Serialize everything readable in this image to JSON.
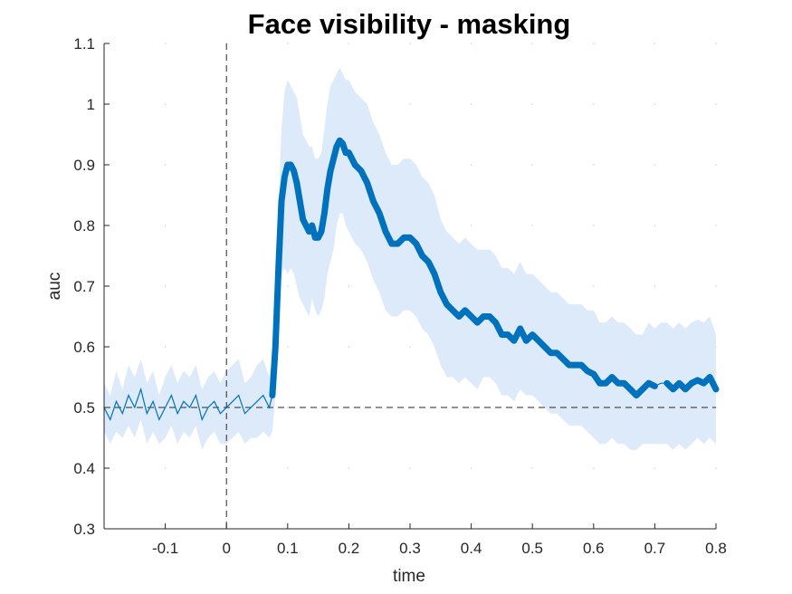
{
  "chart_data": {
    "type": "line",
    "title": "Face visibility - masking",
    "xlabel": "time",
    "ylabel": "auc",
    "xlim": [
      -0.2,
      0.8
    ],
    "ylim": [
      0.3,
      1.1
    ],
    "x_ticks": [
      -0.1,
      0,
      0.1,
      0.2,
      0.3,
      0.4,
      0.5,
      0.6,
      0.7,
      0.8
    ],
    "x_tick_labels": [
      "-0.1",
      "0",
      "0.1",
      "0.2",
      "0.3",
      "0.4",
      "0.5",
      "0.6",
      "0.7",
      "0.8"
    ],
    "y_ticks": [
      0.3,
      0.4,
      0.5,
      0.6,
      0.7,
      0.8,
      0.9,
      1.0,
      1.1
    ],
    "y_tick_labels": [
      "0.3",
      "0.4",
      "0.5",
      "0.6",
      "0.7",
      "0.8",
      "0.9",
      "1",
      "1.1"
    ],
    "chance_level": 0.5,
    "stimulus_onset": 0,
    "grid": "minor dotted",
    "colors": {
      "line": "#0072bd",
      "band": "#ddeafa",
      "reference": "#262626"
    },
    "series": [
      {
        "x": [
          -0.2,
          -0.19,
          -0.18,
          -0.17,
          -0.16,
          -0.15,
          -0.14,
          -0.13,
          -0.12,
          -0.11,
          -0.1,
          -0.09,
          -0.08,
          -0.07,
          -0.06,
          -0.05,
          -0.04,
          -0.03,
          -0.02,
          -0.01,
          0.0,
          0.01,
          0.02,
          0.03,
          0.04,
          0.05,
          0.06,
          0.07,
          0.075,
          0.08,
          0.085,
          0.09,
          0.095,
          0.1,
          0.105,
          0.11,
          0.115,
          0.12,
          0.125,
          0.13,
          0.135,
          0.14,
          0.145,
          0.15,
          0.155,
          0.16,
          0.165,
          0.17,
          0.175,
          0.18,
          0.185,
          0.19,
          0.195,
          0.2,
          0.21,
          0.22,
          0.23,
          0.24,
          0.25,
          0.26,
          0.27,
          0.28,
          0.29,
          0.3,
          0.31,
          0.32,
          0.33,
          0.34,
          0.35,
          0.36,
          0.37,
          0.38,
          0.39,
          0.4,
          0.41,
          0.42,
          0.43,
          0.44,
          0.45,
          0.46,
          0.47,
          0.48,
          0.49,
          0.5,
          0.51,
          0.52,
          0.53,
          0.54,
          0.55,
          0.56,
          0.57,
          0.58,
          0.59,
          0.6,
          0.61,
          0.62,
          0.63,
          0.64,
          0.65,
          0.66,
          0.67,
          0.68,
          0.69,
          0.7,
          0.71,
          0.72,
          0.73,
          0.74,
          0.75,
          0.76,
          0.77,
          0.78,
          0.79,
          0.8
        ],
        "y": [
          0.5,
          0.48,
          0.51,
          0.49,
          0.52,
          0.5,
          0.53,
          0.49,
          0.51,
          0.48,
          0.5,
          0.52,
          0.49,
          0.51,
          0.5,
          0.52,
          0.48,
          0.5,
          0.51,
          0.49,
          0.5,
          0.51,
          0.52,
          0.49,
          0.5,
          0.51,
          0.52,
          0.5,
          0.52,
          0.6,
          0.73,
          0.84,
          0.88,
          0.9,
          0.9,
          0.89,
          0.87,
          0.84,
          0.81,
          0.8,
          0.79,
          0.8,
          0.78,
          0.78,
          0.79,
          0.82,
          0.86,
          0.89,
          0.91,
          0.93,
          0.94,
          0.935,
          0.92,
          0.92,
          0.9,
          0.89,
          0.87,
          0.84,
          0.82,
          0.79,
          0.77,
          0.77,
          0.78,
          0.78,
          0.77,
          0.75,
          0.74,
          0.72,
          0.69,
          0.67,
          0.66,
          0.65,
          0.66,
          0.65,
          0.64,
          0.65,
          0.65,
          0.64,
          0.62,
          0.62,
          0.61,
          0.63,
          0.61,
          0.62,
          0.61,
          0.6,
          0.59,
          0.59,
          0.58,
          0.57,
          0.57,
          0.57,
          0.56,
          0.555,
          0.54,
          0.54,
          0.55,
          0.54,
          0.54,
          0.53,
          0.52,
          0.53,
          0.54,
          0.535,
          0.54,
          0.54,
          0.53,
          0.54,
          0.53,
          0.54,
          0.545,
          0.54,
          0.55,
          0.53
        ],
        "lower": [
          0.46,
          0.44,
          0.46,
          0.45,
          0.47,
          0.45,
          0.48,
          0.44,
          0.46,
          0.44,
          0.45,
          0.47,
          0.44,
          0.46,
          0.45,
          0.47,
          0.43,
          0.45,
          0.46,
          0.44,
          0.44,
          0.45,
          0.46,
          0.44,
          0.45,
          0.45,
          0.46,
          0.45,
          0.46,
          0.52,
          0.63,
          0.72,
          0.73,
          0.72,
          0.73,
          0.72,
          0.7,
          0.68,
          0.67,
          0.66,
          0.65,
          0.68,
          0.66,
          0.65,
          0.66,
          0.68,
          0.72,
          0.74,
          0.76,
          0.8,
          0.82,
          0.82,
          0.8,
          0.79,
          0.77,
          0.76,
          0.74,
          0.71,
          0.69,
          0.66,
          0.65,
          0.65,
          0.66,
          0.66,
          0.65,
          0.63,
          0.62,
          0.6,
          0.57,
          0.55,
          0.55,
          0.54,
          0.55,
          0.54,
          0.53,
          0.55,
          0.55,
          0.54,
          0.52,
          0.52,
          0.51,
          0.53,
          0.52,
          0.52,
          0.51,
          0.5,
          0.49,
          0.49,
          0.48,
          0.47,
          0.47,
          0.47,
          0.46,
          0.45,
          0.44,
          0.44,
          0.45,
          0.44,
          0.44,
          0.43,
          0.43,
          0.44,
          0.44,
          0.44,
          0.44,
          0.44,
          0.43,
          0.44,
          0.43,
          0.44,
          0.45,
          0.44,
          0.45,
          0.44
        ],
        "upper": [
          0.54,
          0.52,
          0.56,
          0.53,
          0.57,
          0.55,
          0.58,
          0.54,
          0.56,
          0.52,
          0.55,
          0.57,
          0.54,
          0.56,
          0.55,
          0.57,
          0.53,
          0.55,
          0.56,
          0.54,
          0.56,
          0.57,
          0.58,
          0.54,
          0.55,
          0.57,
          0.58,
          0.55,
          0.58,
          0.68,
          0.83,
          0.96,
          1.02,
          1.04,
          1.03,
          1.02,
          1.01,
          0.98,
          0.95,
          0.94,
          0.93,
          0.93,
          0.91,
          0.91,
          0.92,
          0.96,
          1.0,
          1.03,
          1.04,
          1.05,
          1.06,
          1.05,
          1.04,
          1.04,
          1.02,
          1.01,
          1.0,
          0.97,
          0.95,
          0.92,
          0.9,
          0.9,
          0.91,
          0.91,
          0.9,
          0.88,
          0.87,
          0.85,
          0.81,
          0.79,
          0.78,
          0.77,
          0.78,
          0.77,
          0.76,
          0.76,
          0.76,
          0.75,
          0.73,
          0.73,
          0.72,
          0.74,
          0.72,
          0.72,
          0.71,
          0.7,
          0.69,
          0.69,
          0.68,
          0.67,
          0.67,
          0.67,
          0.66,
          0.66,
          0.64,
          0.64,
          0.65,
          0.64,
          0.64,
          0.63,
          0.62,
          0.62,
          0.64,
          0.63,
          0.64,
          0.64,
          0.63,
          0.64,
          0.63,
          0.64,
          0.645,
          0.64,
          0.65,
          0.62
        ],
        "significant": [
          false,
          false,
          false,
          false,
          false,
          false,
          false,
          false,
          false,
          false,
          false,
          false,
          false,
          false,
          false,
          false,
          false,
          false,
          false,
          false,
          false,
          false,
          false,
          false,
          false,
          false,
          false,
          false,
          true,
          true,
          true,
          true,
          true,
          true,
          true,
          true,
          true,
          true,
          true,
          true,
          true,
          true,
          true,
          true,
          true,
          true,
          true,
          true,
          true,
          true,
          true,
          true,
          true,
          true,
          true,
          true,
          true,
          true,
          true,
          true,
          true,
          true,
          true,
          true,
          true,
          true,
          true,
          true,
          true,
          true,
          true,
          true,
          true,
          true,
          true,
          true,
          true,
          true,
          true,
          true,
          true,
          true,
          true,
          true,
          true,
          true,
          true,
          true,
          true,
          true,
          true,
          true,
          true,
          true,
          true,
          true,
          true,
          true,
          true,
          true,
          true,
          true,
          true,
          true,
          false,
          true,
          true,
          true,
          true,
          true,
          true,
          true,
          true,
          true
        ]
      }
    ]
  }
}
